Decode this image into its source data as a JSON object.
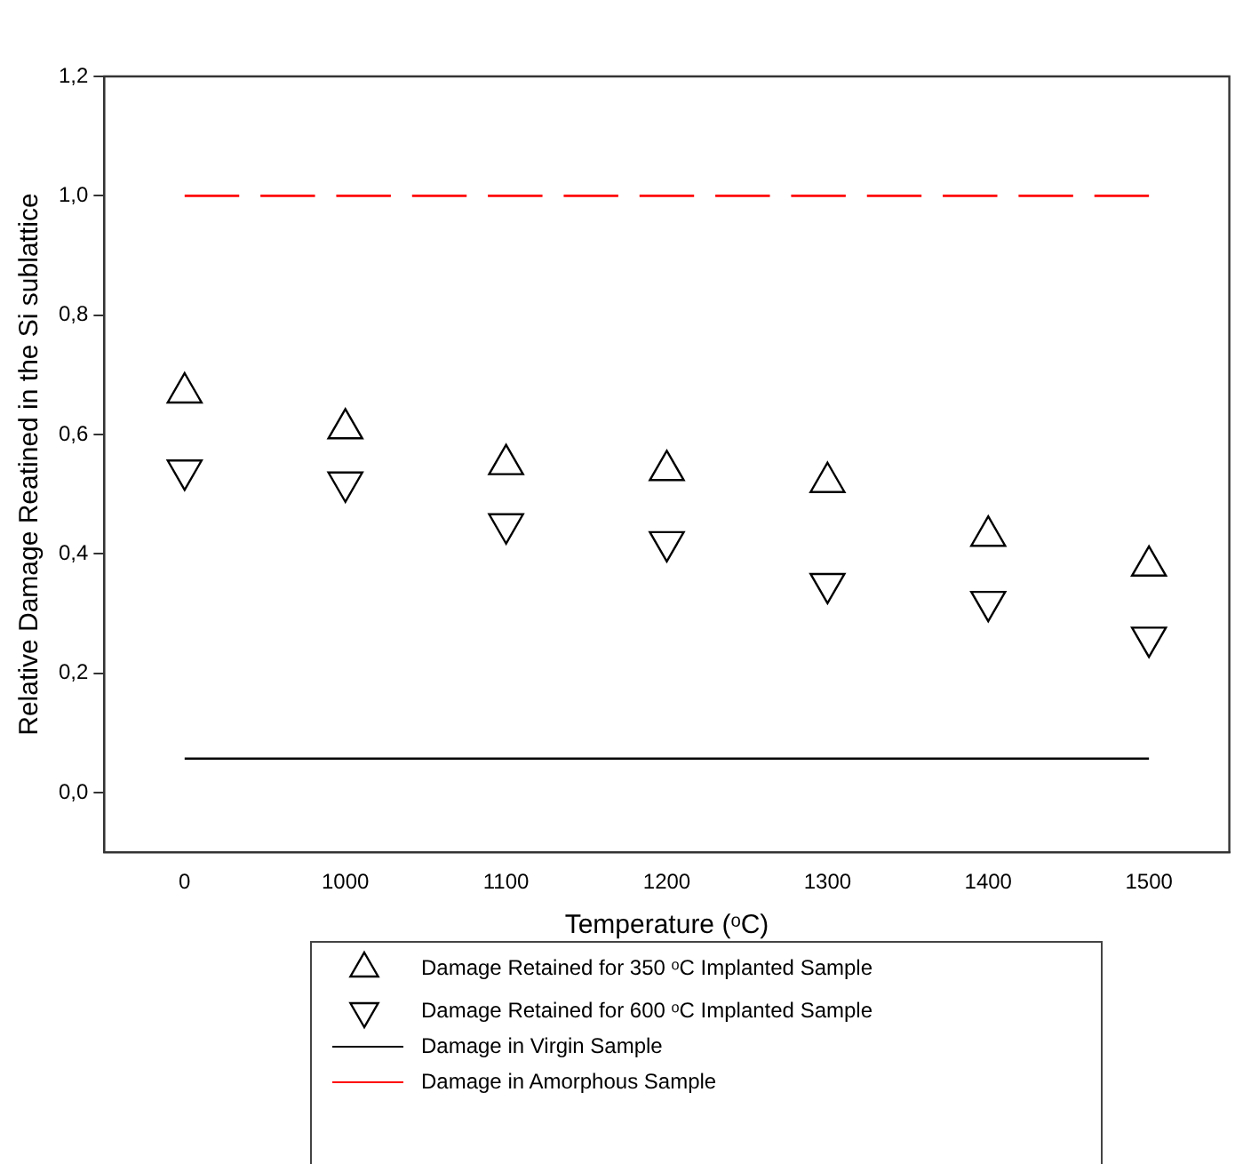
{
  "chart_data": {
    "type": "scatter",
    "xlabel": "Temperature (ᵒC)",
    "ylabel": "Relative Damage Reatined in the Si sublattice",
    "categories": [
      "0",
      "1000",
      "1100",
      "1200",
      "1300",
      "1400",
      "1500"
    ],
    "ylim": [
      -0.1,
      1.2
    ],
    "yticks": [
      {
        "value": 0,
        "label": "0,0"
      },
      {
        "value": 0.2,
        "label": "0,2"
      },
      {
        "value": 0.4,
        "label": "0,4"
      },
      {
        "value": 0.6,
        "label": "0,6"
      },
      {
        "value": 0.8,
        "label": "0,8"
      },
      {
        "value": 1,
        "label": "1,0"
      },
      {
        "value": 1.2,
        "label": "1,2"
      }
    ],
    "grid": false,
    "legend": "bottom",
    "series": [
      {
        "name": "Damage Retained for 350 ᵒC Implanted Sample",
        "marker": "triangle",
        "color": "#000000",
        "values": [
          0.67,
          0.61,
          0.55,
          0.54,
          0.52,
          0.43,
          0.38
        ]
      },
      {
        "name": "Damage Retained for 600 ᵒC Implanted Sample",
        "marker": "triangle-down",
        "color": "#000000",
        "values": [
          0.54,
          0.52,
          0.45,
          0.42,
          0.35,
          0.32,
          0.26
        ]
      },
      {
        "name": "Damage in Virgin Sample",
        "type": "line",
        "marker": "none",
        "line_style": "solid",
        "color": "#000000",
        "values": [
          0.057,
          0.057,
          0.057,
          0.057,
          0.057,
          0.057,
          0.057
        ]
      },
      {
        "name": "Damage in Amorphous Sample",
        "type": "line",
        "marker": "none",
        "line_style": "dashed",
        "color": "#ff0000",
        "values": [
          1,
          1,
          1,
          1,
          1,
          1,
          1
        ]
      }
    ]
  }
}
